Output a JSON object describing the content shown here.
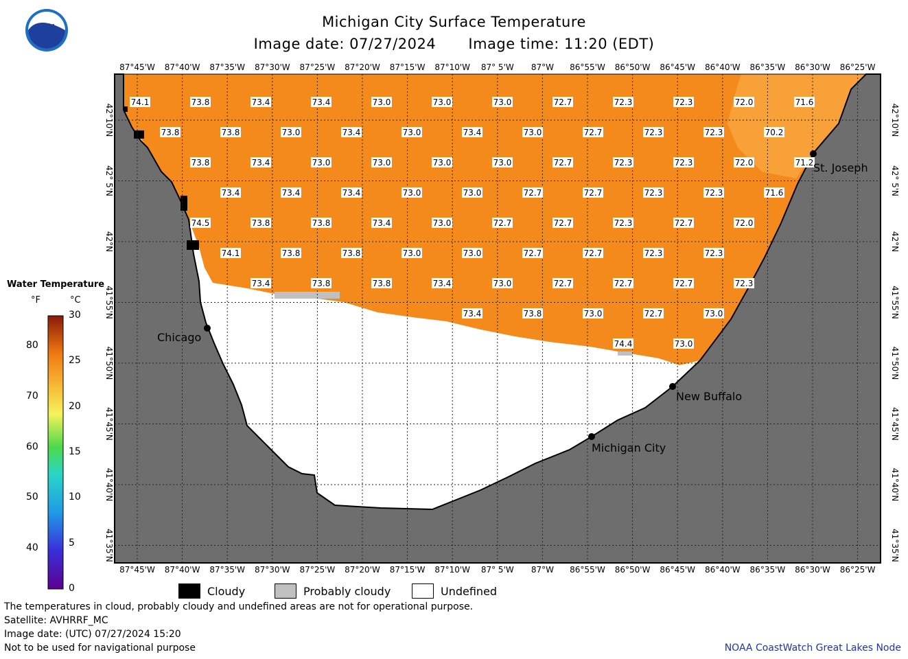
{
  "header": {
    "title": "Michigan City Surface Temperature",
    "image_date": "Image date: 07/27/2024",
    "image_time": "Image time: 11:20 (EDT)"
  },
  "logo_text": "NOAA",
  "colors": {
    "water": "#f48a1c",
    "land": "#6e6e6e",
    "cloudy": "#000000",
    "probably_cloudy": "#c0c0c0",
    "undefined": "#ffffff",
    "credit": "#2233aa"
  },
  "axes": {
    "lon_labels": [
      "87°45'W",
      "87°40'W",
      "87°35'W",
      "87°30'W",
      "87°25'W",
      "87°20'W",
      "87°15'W",
      "87°10'W",
      "87° 5'W",
      "87°W",
      "86°55'W",
      "86°50'W",
      "86°45'W",
      "86°40'W",
      "86°35'W",
      "86°30'W",
      "86°25'W"
    ],
    "lat_labels": [
      "42°10'N",
      "42° 5'N",
      "42°N",
      "41°55'N",
      "41°50'N",
      "41°45'N",
      "41°40'N",
      "41°35'N"
    ]
  },
  "colorbar": {
    "title": "Water Temperature",
    "unit_f": "°F",
    "unit_c": "°C",
    "f_ticks": [
      "40",
      "50",
      "60",
      "70",
      "80"
    ],
    "c_ticks": [
      "0",
      "5",
      "10",
      "15",
      "20",
      "25",
      "30"
    ]
  },
  "cities": [
    {
      "name": "Chicago"
    },
    {
      "name": "St. Joseph"
    },
    {
      "name": "New Buffalo"
    },
    {
      "name": "Michigan City"
    }
  ],
  "temperature_rows": [
    [
      "74.1",
      "73.8",
      "73.4",
      "73.4",
      "73.0",
      "73.0",
      "73.0",
      "72.7",
      "72.3",
      "72.3",
      "72.0",
      "71.6"
    ],
    [
      "73.8",
      "73.8",
      "73.0",
      "73.4",
      "73.0",
      "73.4",
      "73.0",
      "72.7",
      "72.3",
      "72.3",
      "70.2"
    ],
    [
      "73.8",
      "73.4",
      "73.0",
      "73.0",
      "73.0",
      "73.0",
      "72.7",
      "72.3",
      "72.3",
      "72.0",
      "71.2"
    ],
    [
      "73.4",
      "73.4",
      "73.4",
      "73.0",
      "73.0",
      "72.7",
      "72.7",
      "72.3",
      "72.3",
      "71.6"
    ],
    [
      "74.5",
      "73.8",
      "73.8",
      "73.4",
      "73.0",
      "72.7",
      "72.7",
      "72.3",
      "72.7",
      "72.0"
    ],
    [
      "74.1",
      "73.8",
      "73.8",
      "73.0",
      "73.0",
      "72.7",
      "72.7",
      "72.3",
      "72.3"
    ],
    [
      "73.4",
      "73.8",
      "73.8",
      "73.4",
      "73.0",
      "72.7",
      "72.7",
      "72.7",
      "72.3"
    ],
    [
      "73.4",
      "73.8",
      "73.0",
      "72.7",
      "73.0"
    ],
    [
      "74.4",
      "73.0"
    ]
  ],
  "legend": {
    "cloudy": "Cloudy",
    "probably_cloudy": "Probably cloudy",
    "undefined": "Undefined"
  },
  "footer": {
    "line1": "The temperatures in cloud, probably cloudy and undefined areas are not for operational purpose.",
    "line2": "Satellite: AVHRRF_MC",
    "line3": "Image date: (UTC) 07/27/2024  15:20",
    "line4": "Not to be used for navigational purpose",
    "credit": "NOAA CoastWatch Great Lakes Node"
  }
}
